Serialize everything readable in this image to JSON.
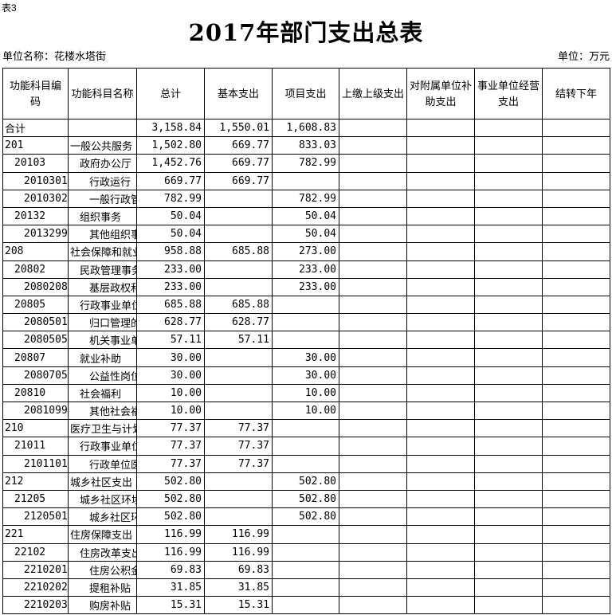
{
  "page": {
    "table_tag": "表3",
    "title": "2017年部门支出总表",
    "unit_name": "单位名称：花楼水塔街",
    "unit": "单位：万元"
  },
  "table": {
    "headers": [
      "功能科目编码",
      "功能科目名称",
      "总计",
      "基本支出",
      "项目支出",
      "上缴上级支出",
      "对附属单位补助支出",
      "事业单位经营支出",
      "结转下年"
    ],
    "rows": [
      {
        "code": "合计",
        "indent": 0,
        "name": "",
        "cells": [
          "3,158.84",
          "1,550.01",
          "1,608.83",
          "",
          "",
          "",
          ""
        ]
      },
      {
        "code": "201",
        "indent": 0,
        "name": "一般公共服务",
        "cells": [
          "1,502.80",
          "669.77",
          "833.03",
          "",
          "",
          "",
          ""
        ]
      },
      {
        "code": "20103",
        "indent": 1,
        "name": "政府办公厅（",
        "cells": [
          "1,452.76",
          "669.77",
          "782.99",
          "",
          "",
          "",
          ""
        ]
      },
      {
        "code": "2010301",
        "indent": 2,
        "name": "行政运行（",
        "cells": [
          "669.77",
          "669.77",
          "",
          "",
          "",
          "",
          ""
        ]
      },
      {
        "code": "2010302",
        "indent": 2,
        "name": "一般行政管",
        "cells": [
          "782.99",
          "",
          "782.99",
          "",
          "",
          "",
          ""
        ]
      },
      {
        "code": "20132",
        "indent": 1,
        "name": "组织事务",
        "cells": [
          "50.04",
          "",
          "50.04",
          "",
          "",
          "",
          ""
        ]
      },
      {
        "code": "2013299",
        "indent": 2,
        "name": "其他组织事",
        "cells": [
          "50.04",
          "",
          "50.04",
          "",
          "",
          "",
          ""
        ]
      },
      {
        "code": "208",
        "indent": 0,
        "name": "社会保障和就业",
        "cells": [
          "958.88",
          "685.88",
          "273.00",
          "",
          "",
          "",
          ""
        ]
      },
      {
        "code": "20802",
        "indent": 1,
        "name": "民政管理事务",
        "cells": [
          "233.00",
          "",
          "233.00",
          "",
          "",
          "",
          ""
        ]
      },
      {
        "code": "2080208",
        "indent": 2,
        "name": "基层政权和",
        "cells": [
          "233.00",
          "",
          "233.00",
          "",
          "",
          "",
          ""
        ]
      },
      {
        "code": "20805",
        "indent": 1,
        "name": "行政事业单位",
        "cells": [
          "685.88",
          "685.88",
          "",
          "",
          "",
          "",
          ""
        ]
      },
      {
        "code": "2080501",
        "indent": 2,
        "name": "归口管理的",
        "cells": [
          "628.77",
          "628.77",
          "",
          "",
          "",
          "",
          ""
        ]
      },
      {
        "code": "2080505",
        "indent": 2,
        "name": "机关事业单",
        "cells": [
          "57.11",
          "57.11",
          "",
          "",
          "",
          "",
          ""
        ]
      },
      {
        "code": "20807",
        "indent": 1,
        "name": "就业补助",
        "cells": [
          "30.00",
          "",
          "30.00",
          "",
          "",
          "",
          ""
        ]
      },
      {
        "code": "2080705",
        "indent": 2,
        "name": "公益性岗位",
        "cells": [
          "30.00",
          "",
          "30.00",
          "",
          "",
          "",
          ""
        ]
      },
      {
        "code": "20810",
        "indent": 1,
        "name": "社会福利",
        "cells": [
          "10.00",
          "",
          "10.00",
          "",
          "",
          "",
          ""
        ]
      },
      {
        "code": "2081099",
        "indent": 2,
        "name": "其他社会福",
        "cells": [
          "10.00",
          "",
          "10.00",
          "",
          "",
          "",
          ""
        ]
      },
      {
        "code": "210",
        "indent": 0,
        "name": "医疗卫生与计划",
        "cells": [
          "77.37",
          "77.37",
          "",
          "",
          "",
          "",
          ""
        ]
      },
      {
        "code": "21011",
        "indent": 1,
        "name": "行政事业单位",
        "cells": [
          "77.37",
          "77.37",
          "",
          "",
          "",
          "",
          ""
        ]
      },
      {
        "code": "2101101",
        "indent": 2,
        "name": "行政单位医",
        "cells": [
          "77.37",
          "77.37",
          "",
          "",
          "",
          "",
          ""
        ]
      },
      {
        "code": "212",
        "indent": 0,
        "name": "城乡社区支出",
        "cells": [
          "502.80",
          "",
          "502.80",
          "",
          "",
          "",
          ""
        ]
      },
      {
        "code": "21205",
        "indent": 1,
        "name": "城乡社区环境",
        "cells": [
          "502.80",
          "",
          "502.80",
          "",
          "",
          "",
          ""
        ]
      },
      {
        "code": "2120501",
        "indent": 2,
        "name": "城乡社区环",
        "cells": [
          "502.80",
          "",
          "502.80",
          "",
          "",
          "",
          ""
        ]
      },
      {
        "code": "221",
        "indent": 0,
        "name": "住房保障支出",
        "cells": [
          "116.99",
          "116.99",
          "",
          "",
          "",
          "",
          ""
        ]
      },
      {
        "code": "22102",
        "indent": 1,
        "name": "住房改革支出",
        "cells": [
          "116.99",
          "116.99",
          "",
          "",
          "",
          "",
          ""
        ]
      },
      {
        "code": "2210201",
        "indent": 2,
        "name": "住房公积金",
        "cells": [
          "69.83",
          "69.83",
          "",
          "",
          "",
          "",
          ""
        ]
      },
      {
        "code": "2210202",
        "indent": 2,
        "name": "提租补贴",
        "cells": [
          "31.85",
          "31.85",
          "",
          "",
          "",
          "",
          ""
        ]
      },
      {
        "code": "2210203",
        "indent": 2,
        "name": "购房补贴",
        "cells": [
          "15.31",
          "15.31",
          "",
          "",
          "",
          "",
          ""
        ]
      }
    ]
  }
}
